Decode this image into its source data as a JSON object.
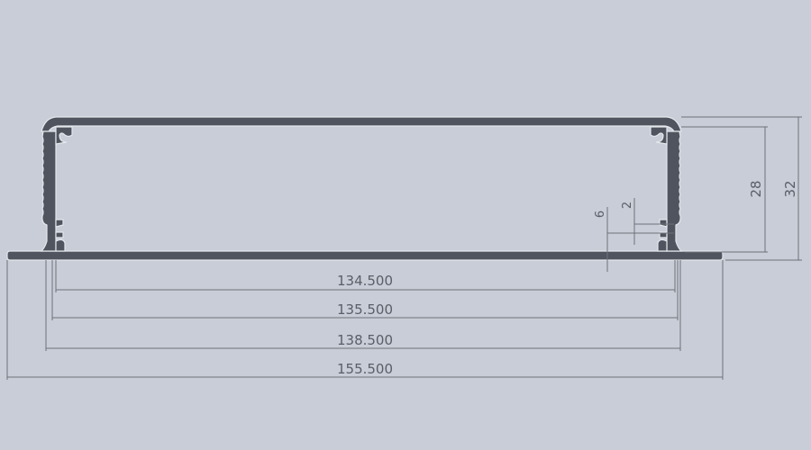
{
  "drawing": {
    "subject": "aluminum enclosure profile cross-section",
    "profile_color": "#50545e",
    "background_color": "#c8cdd7",
    "dimensions": {
      "width_inner": "134.500",
      "width_mid": "135.500",
      "width_outer_wall": "138.500",
      "width_flange": "155.500",
      "height_inner": "28",
      "height_outer": "32",
      "slot_offset": "6",
      "slot_width": "2"
    }
  }
}
